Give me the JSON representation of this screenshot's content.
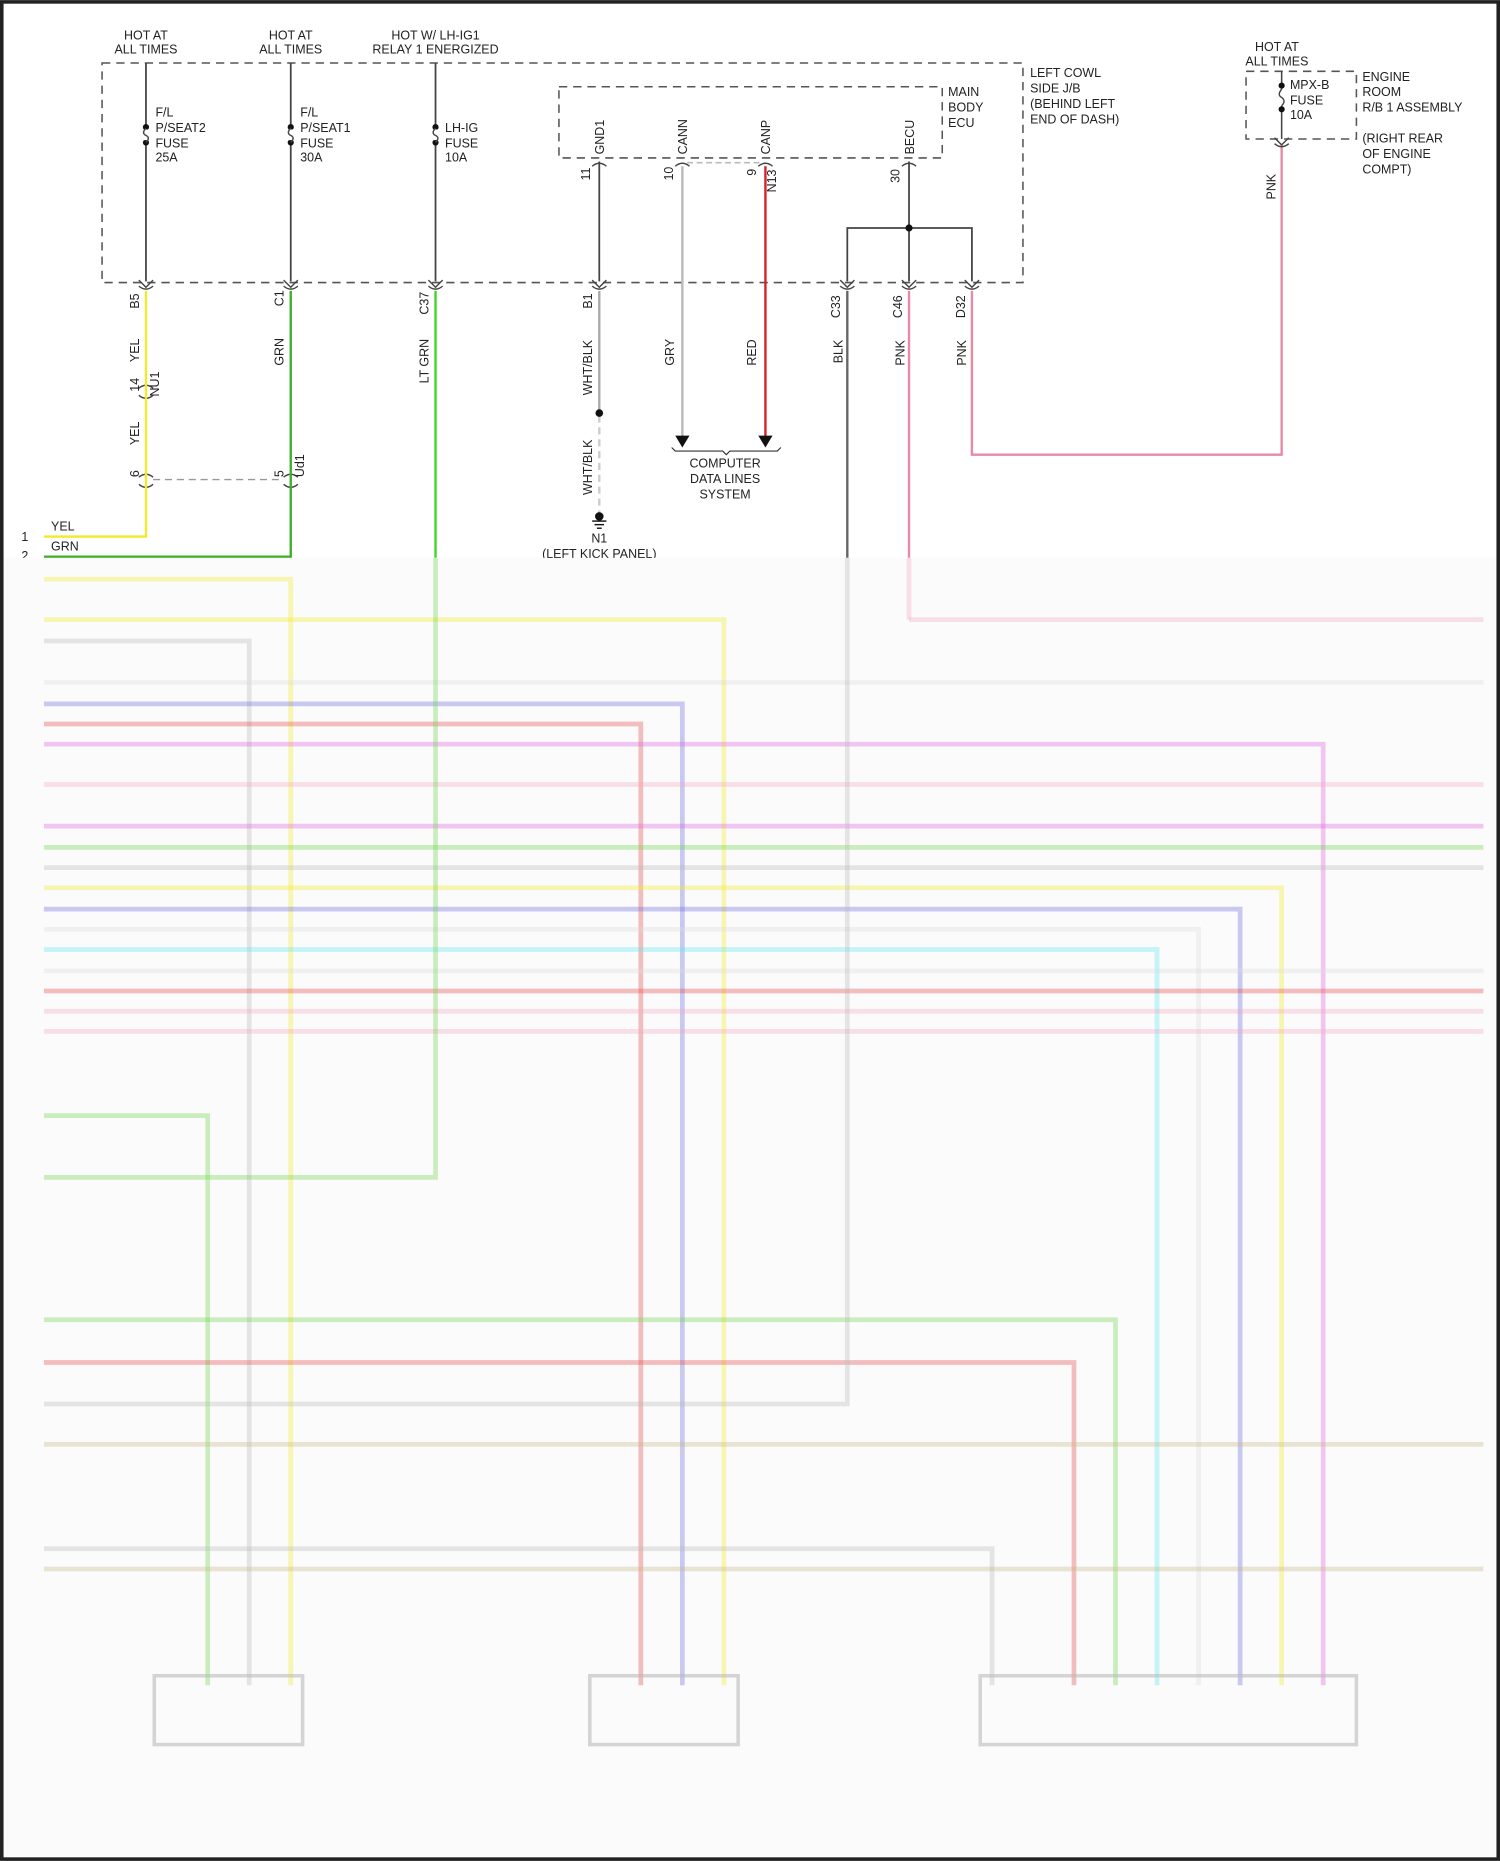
{
  "colors": {
    "yel": "#f2ea2a",
    "grn": "#3fae2a",
    "ltgrn": "#3fd42a",
    "gry": "#b9b9b9",
    "red": "#d81f26",
    "blk": "#555555",
    "pnk": "#e88aa6",
    "wire": "#444444"
  },
  "sources": [
    {
      "line1": "HOT AT",
      "line2": "ALL TIMES"
    },
    {
      "line1": "HOT AT",
      "line2": "ALL TIMES"
    },
    {
      "line1": "HOT W/ LH-IG1",
      "line2": "RELAY 1 ENERGIZED"
    },
    {
      "line1": "HOT AT",
      "line2": "ALL TIMES"
    }
  ],
  "fuses": [
    {
      "l1": "F/L",
      "l2": "P/SEAT2",
      "l3": "FUSE",
      "l4": "25A"
    },
    {
      "l1": "F/L",
      "l2": "P/SEAT1",
      "l3": "FUSE",
      "l4": "30A"
    },
    {
      "l1": "LH-IG",
      "l2": "FUSE",
      "l3": "10A"
    },
    {
      "l1": "MPX-B",
      "l2": "FUSE",
      "l3": "10A"
    }
  ],
  "junction_block": {
    "l1": "LEFT COWL",
    "l2": "SIDE J/B",
    "l3": "(BEHIND LEFT",
    "l4": "END OF DASH)"
  },
  "ecu": {
    "l1": "MAIN",
    "l2": "BODY",
    "l3": "ECU",
    "pins": [
      {
        "name": "GND1",
        "num": "11"
      },
      {
        "name": "CANN",
        "num": "10"
      },
      {
        "name": "CANP",
        "num": "9"
      },
      {
        "name": "BECU",
        "num": "30"
      }
    ],
    "connector": "N13"
  },
  "engine_room": {
    "l1": "ENGINE",
    "l2": "ROOM",
    "l3": "R/B 1 ASSEMBLY",
    "l4": "(RIGHT REAR",
    "l5": "OF ENGINE",
    "l6": "COMPT)"
  },
  "jb_pins": [
    "B5",
    "C1",
    "C37",
    "B1",
    "C33",
    "C46",
    "D32"
  ],
  "wire_labels": {
    "yel1": "YEL",
    "yel2": "YEL",
    "grn": "GRN",
    "ltgrn": "LT GRN",
    "whtblk1": "WHT/BLK",
    "whtblk2": "WHT/BLK",
    "gry": "GRY",
    "red": "RED",
    "blk": "BLK",
    "pnk1": "PNK",
    "pnk2": "PNK",
    "pnk3": "PNK"
  },
  "inline_connectors": {
    "nu1": "NU1",
    "nu1_pin": "14",
    "ud1": "Ud1",
    "ud1_pin": "5",
    "yel_pin": "6"
  },
  "ground": {
    "name": "N1",
    "location": "(LEFT KICK PANEL)"
  },
  "data_lines": {
    "l1": "COMPUTER",
    "l2": "DATA LINES",
    "l3": "SYSTEM"
  },
  "left_pins": [
    {
      "num": "1",
      "color": "YEL"
    },
    {
      "num": "2",
      "color": "GRN"
    }
  ]
}
